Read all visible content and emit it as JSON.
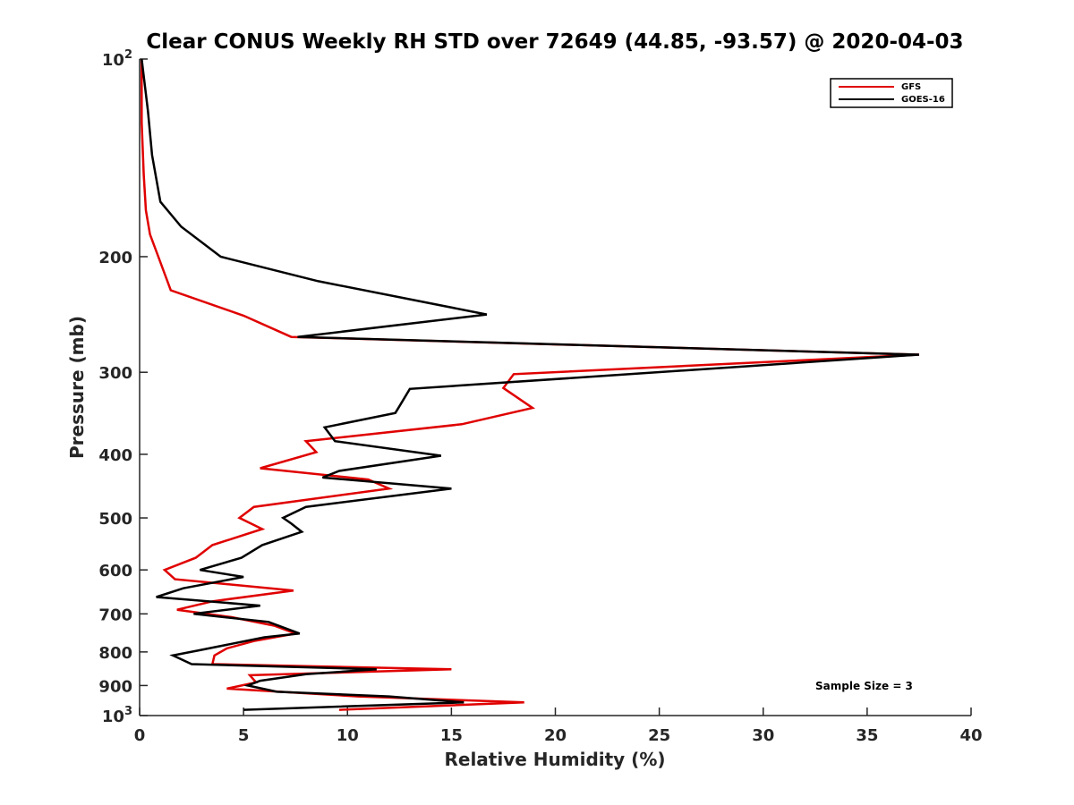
{
  "chart_data": {
    "type": "line",
    "title": "Clear CONUS Weekly RH STD over 72649 (44.85, -93.57) @ 2020-04-03",
    "xlabel": "Relative Humidity (%)",
    "ylabel": "Pressure (mb)",
    "xlim": [
      0,
      40
    ],
    "ylim": [
      100,
      1000
    ],
    "y_scale": "log",
    "y_reversed": true,
    "grid": false,
    "legend_position": "top-right",
    "x_ticks": [
      0,
      5,
      10,
      15,
      20,
      25,
      30,
      35,
      40
    ],
    "x_tick_labels": [
      "0",
      "5",
      "10",
      "15",
      "20",
      "25",
      "30",
      "35",
      "40"
    ],
    "y_ticks": [
      100,
      200,
      300,
      400,
      500,
      600,
      700,
      800,
      900,
      1000
    ],
    "y_tick_labels": [
      {
        "base": "10",
        "exp": "2"
      },
      {
        "base": "200",
        "exp": ""
      },
      {
        "base": "300",
        "exp": ""
      },
      {
        "base": "400",
        "exp": ""
      },
      {
        "base": "500",
        "exp": ""
      },
      {
        "base": "600",
        "exp": ""
      },
      {
        "base": "700",
        "exp": ""
      },
      {
        "base": "800",
        "exp": ""
      },
      {
        "base": "900",
        "exp": ""
      },
      {
        "base": "10",
        "exp": "3"
      }
    ],
    "annotation": "Sample Size = 3",
    "series": [
      {
        "name": "GFS",
        "color": "#e00000",
        "points": [
          [
            0.1,
            100
          ],
          [
            0.1,
            125
          ],
          [
            0.2,
            150
          ],
          [
            0.3,
            170
          ],
          [
            0.5,
            185
          ],
          [
            0.9,
            200
          ],
          [
            1.5,
            225
          ],
          [
            5,
            246
          ],
          [
            7.3,
            265
          ],
          [
            37.5,
            282
          ],
          [
            18.0,
            302
          ],
          [
            17.5,
            317
          ],
          [
            18.9,
            340
          ],
          [
            15.5,
            360
          ],
          [
            8.0,
            382
          ],
          [
            8.5,
            397
          ],
          [
            5.8,
            420
          ],
          [
            11.0,
            437
          ],
          [
            12.0,
            451
          ],
          [
            5.5,
            481
          ],
          [
            4.8,
            500
          ],
          [
            5.9,
            520
          ],
          [
            3.5,
            550
          ],
          [
            2.7,
            575
          ],
          [
            1.2,
            600
          ],
          [
            1.7,
            620
          ],
          [
            7.4,
            645
          ],
          [
            3.5,
            670
          ],
          [
            1.8,
            690
          ],
          [
            4.4,
            708
          ],
          [
            6.5,
            730
          ],
          [
            7.5,
            750
          ],
          [
            5.5,
            770
          ],
          [
            4.2,
            790
          ],
          [
            3.6,
            810
          ],
          [
            3.5,
            835
          ],
          [
            15.0,
            850
          ],
          [
            5.3,
            868
          ],
          [
            5.6,
            890
          ],
          [
            4.2,
            910
          ],
          [
            10.5,
            935
          ],
          [
            18.5,
            955
          ],
          [
            9.6,
            980
          ]
        ]
      },
      {
        "name": "GOES-16",
        "color": "#000000",
        "points": [
          [
            0.1,
            100
          ],
          [
            0.4,
            120
          ],
          [
            0.6,
            140
          ],
          [
            1.0,
            165
          ],
          [
            2.0,
            180
          ],
          [
            3.9,
            200
          ],
          [
            8.6,
            218
          ],
          [
            16.7,
            245
          ],
          [
            7.6,
            265
          ],
          [
            37.5,
            282
          ],
          [
            13.0,
            318
          ],
          [
            12.5,
            338
          ],
          [
            12.3,
            346
          ],
          [
            8.9,
            364
          ],
          [
            9.4,
            382
          ],
          [
            14.5,
            402
          ],
          [
            9.6,
            424
          ],
          [
            8.8,
            434
          ],
          [
            15.0,
            451
          ],
          [
            8.0,
            481
          ],
          [
            6.9,
            500
          ],
          [
            7.3,
            510
          ],
          [
            7.8,
            525
          ],
          [
            5.9,
            550
          ],
          [
            4.9,
            575
          ],
          [
            2.9,
            600
          ],
          [
            5.0,
            615
          ],
          [
            2.1,
            640
          ],
          [
            0.8,
            660
          ],
          [
            5.8,
            680
          ],
          [
            2.6,
            700
          ],
          [
            6.2,
            720
          ],
          [
            7.7,
            750
          ],
          [
            6.0,
            760
          ],
          [
            2.9,
            795
          ],
          [
            1.6,
            810
          ],
          [
            2.5,
            835
          ],
          [
            11.4,
            850
          ],
          [
            8.0,
            865
          ],
          [
            5.8,
            885
          ],
          [
            5.2,
            900
          ],
          [
            6.6,
            920
          ],
          [
            12.0,
            935
          ],
          [
            15.6,
            955
          ],
          [
            5.0,
            980
          ]
        ]
      }
    ]
  }
}
